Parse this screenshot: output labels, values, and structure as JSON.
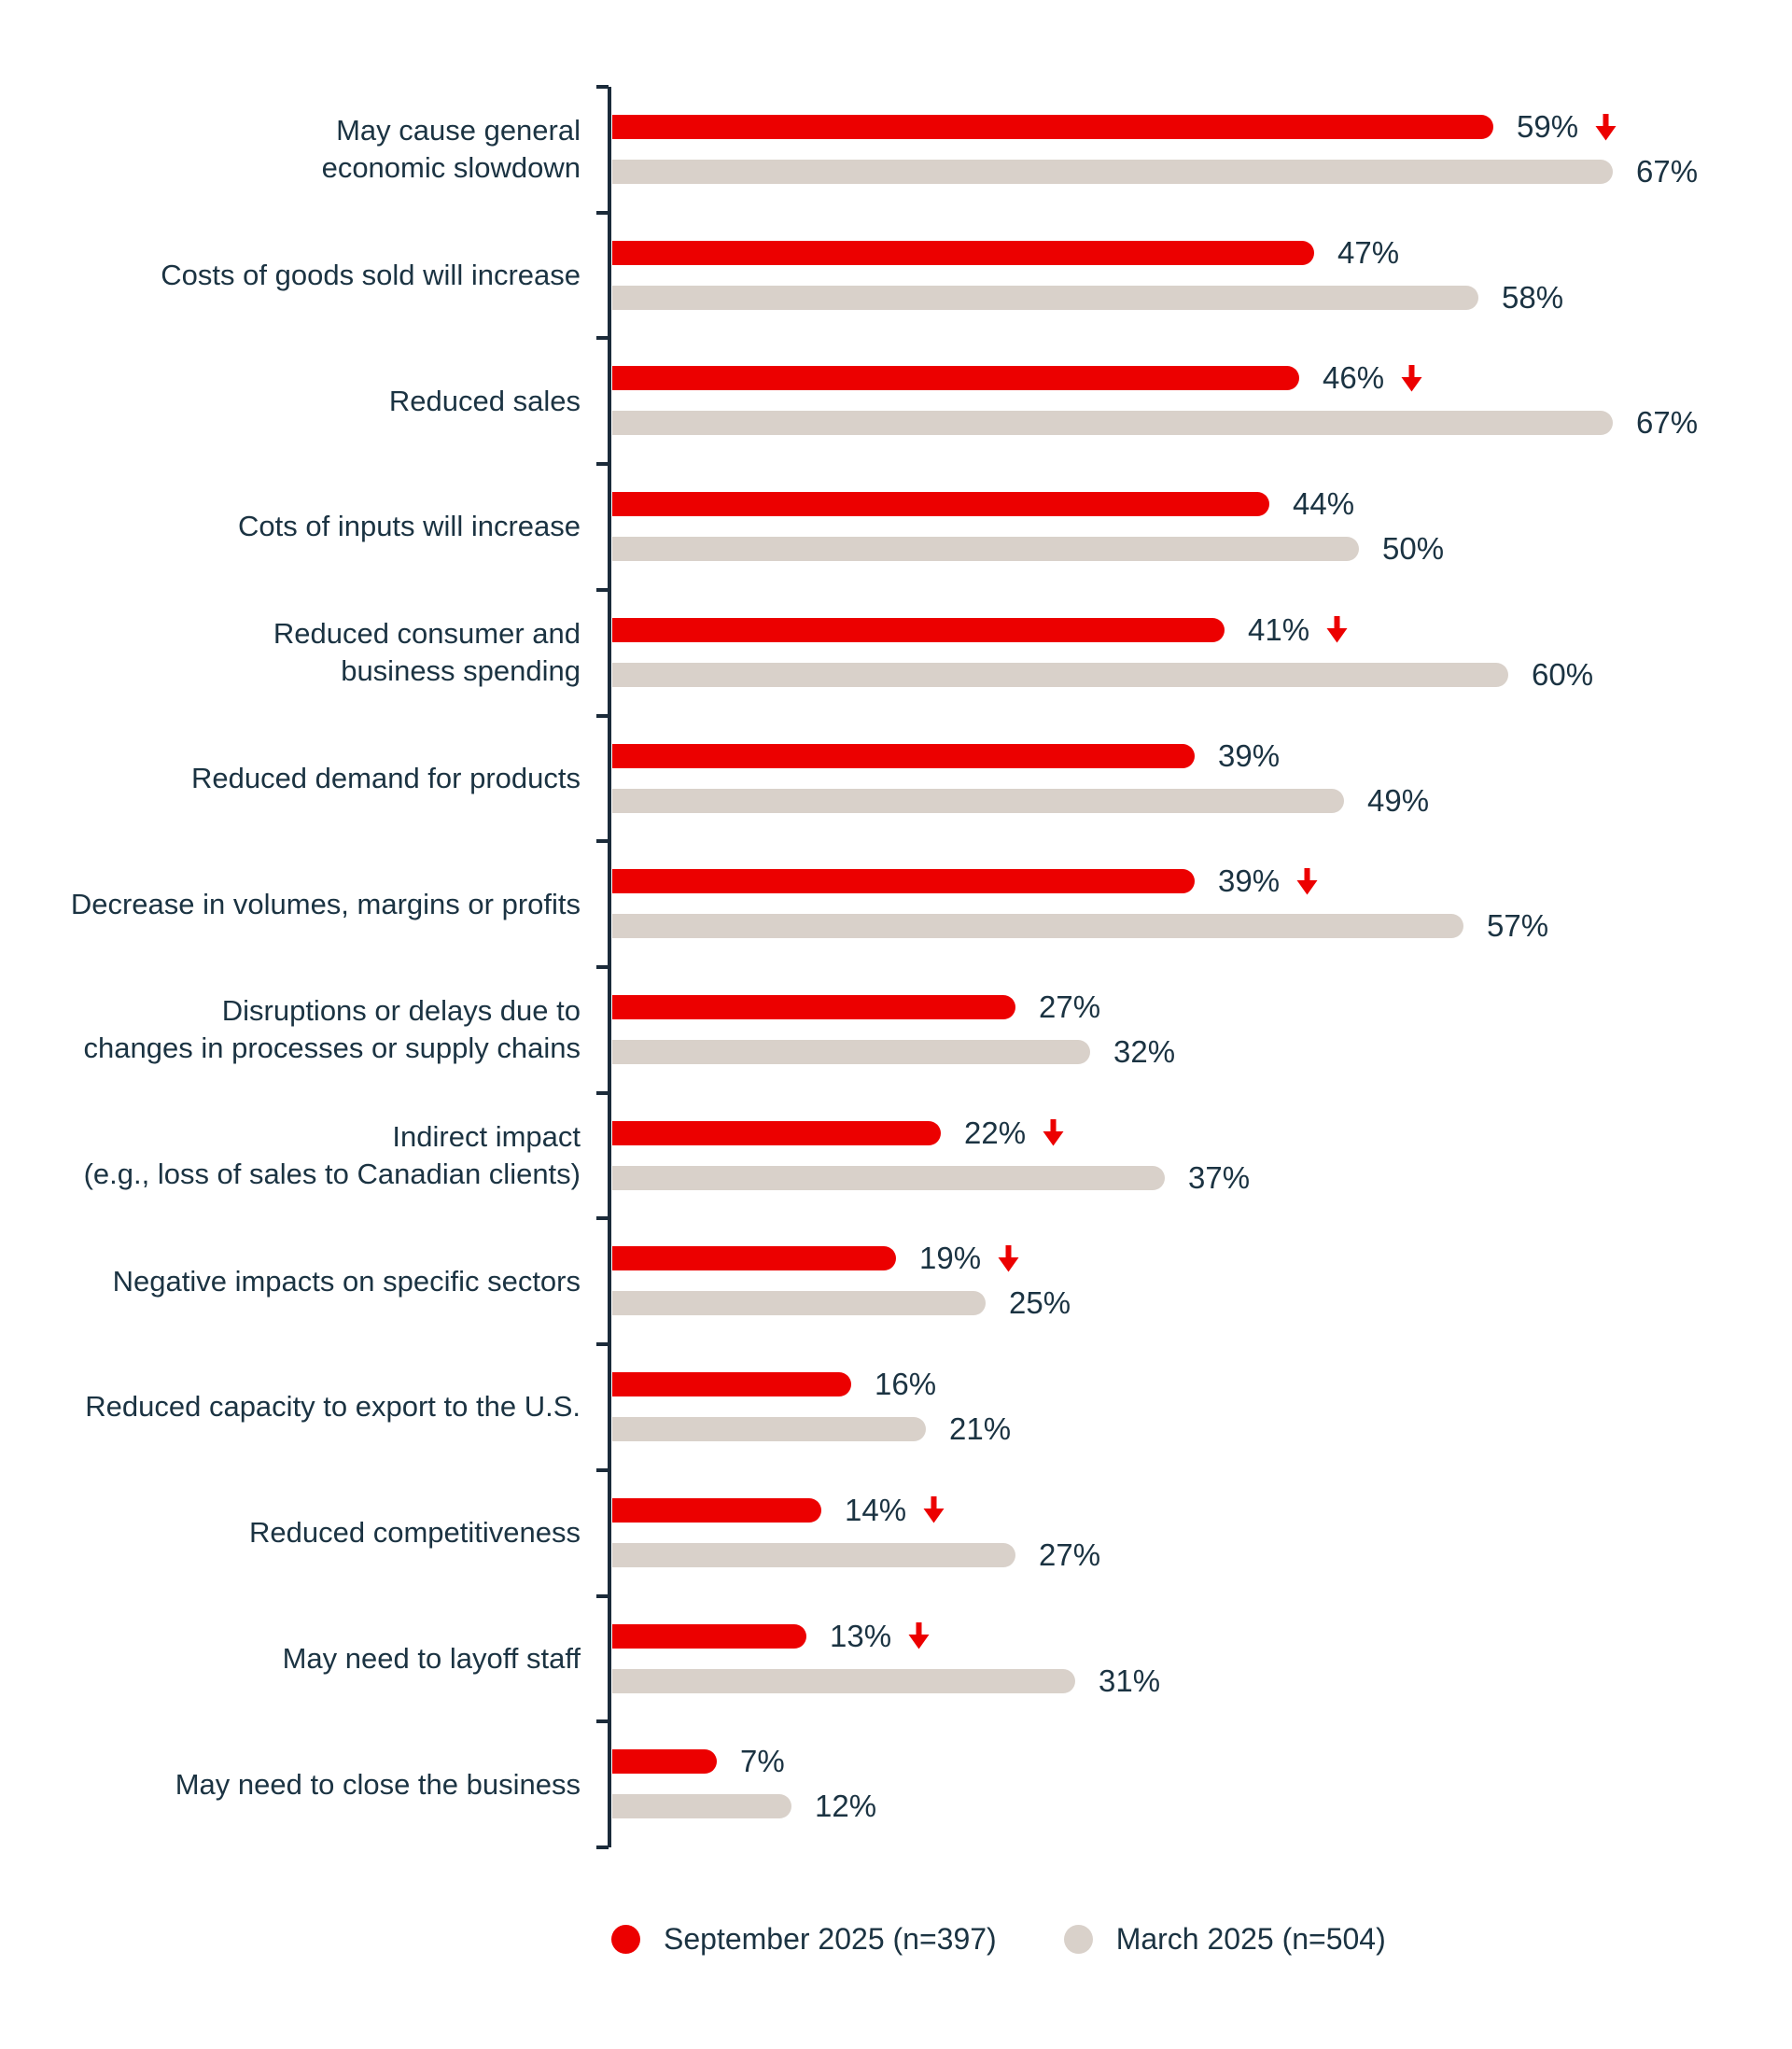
{
  "chart_data": {
    "type": "bar",
    "orientation": "horizontal",
    "value_suffix": "%",
    "xlim": [
      0,
      70
    ],
    "grid": false,
    "legend_position": "bottom",
    "categories": [
      "May cause general economic slowdown",
      "Costs of goods sold will increase",
      "Reduced sales",
      "Cots of inputs will increase",
      "Reduced consumer and business spending",
      "Reduced demand for products",
      "Decrease in volumes, margins or profits",
      "Disruptions or delays due to changes in processes or supply chains",
      "Indirect impact (e.g., loss of sales to Canadian clients)",
      "Negative impacts on specific sectors",
      "Reduced capacity to export to the U.S.",
      "Reduced competitiveness",
      "May need to layoff staff",
      "May need to close the business"
    ],
    "label_lines": [
      [
        "May cause general",
        "economic slowdown"
      ],
      [
        "Costs of goods sold will increase"
      ],
      [
        "Reduced sales"
      ],
      [
        "Cots of inputs will increase"
      ],
      [
        "Reduced consumer and",
        "business spending"
      ],
      [
        "Reduced demand for products"
      ],
      [
        "Decrease in volumes, margins or profits"
      ],
      [
        "Disruptions or delays due to",
        "changes in processes or supply chains"
      ],
      [
        "Indirect impact",
        "(e.g., loss of sales to Canadian clients)"
      ],
      [
        "Negative impacts on specific sectors"
      ],
      [
        "Reduced capacity to export to the U.S."
      ],
      [
        "Reduced competitiveness"
      ],
      [
        "May need to layoff staff"
      ],
      [
        "May need to close the business"
      ]
    ],
    "series": [
      {
        "name": "September 2025 (n=397)",
        "color": "#ec0000",
        "values": [
          59,
          47,
          46,
          44,
          41,
          39,
          39,
          27,
          22,
          19,
          16,
          14,
          13,
          7
        ],
        "decrease_arrow": [
          true,
          false,
          true,
          false,
          true,
          false,
          true,
          false,
          true,
          true,
          false,
          true,
          true,
          false
        ]
      },
      {
        "name": "March 2025 (n=504)",
        "color": "#d9d1ca",
        "values": [
          67,
          58,
          67,
          50,
          60,
          49,
          57,
          32,
          37,
          25,
          21,
          27,
          31,
          12
        ],
        "decrease_arrow": [
          false,
          false,
          false,
          false,
          false,
          false,
          false,
          false,
          false,
          false,
          false,
          false,
          false,
          false
        ]
      }
    ]
  },
  "legend": {
    "items": [
      {
        "label": "September 2025 (n=397)",
        "color": "#ec0000"
      },
      {
        "label": "March 2025 (n=504)",
        "color": "#d9d1ca"
      }
    ]
  },
  "styles": {
    "series1_color": "#ec0000",
    "series2_color": "#d9d1ca",
    "text_color": "#1b3342",
    "axis_color": "#1b2b3a",
    "arrow_color": "#ec0000"
  }
}
